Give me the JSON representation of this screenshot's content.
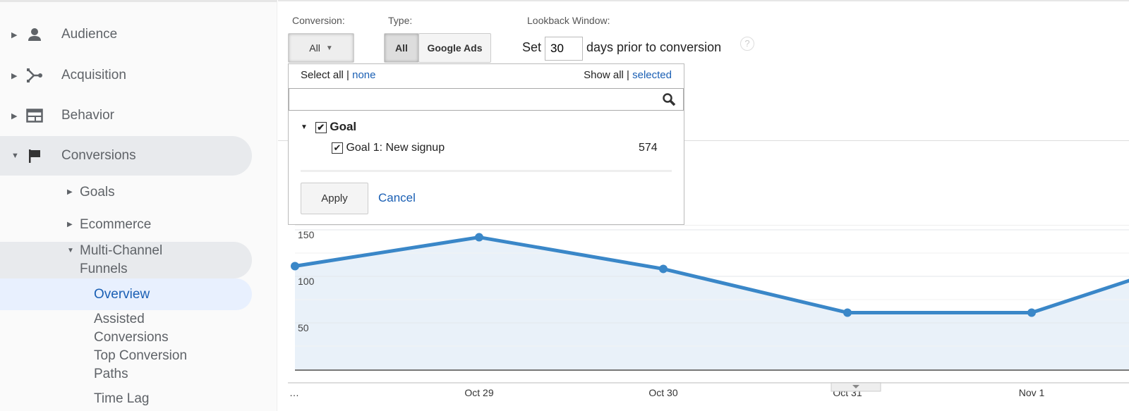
{
  "sidebar": {
    "items": [
      {
        "label": "Audience",
        "icon": "person-icon"
      },
      {
        "label": "Acquisition",
        "icon": "acquisition-icon"
      },
      {
        "label": "Behavior",
        "icon": "behavior-icon"
      },
      {
        "label": "Conversions",
        "icon": "flag-icon"
      }
    ],
    "sub": {
      "goals": "Goals",
      "ecommerce": "Ecommerce",
      "mcf_line1": "Multi-Channel",
      "mcf_line2": "Funnels",
      "overview": "Overview",
      "assisted1": "Assisted",
      "assisted2": "Conversions",
      "top1": "Top Conversion",
      "top2": "Paths",
      "timelag": "Time Lag"
    }
  },
  "filters": {
    "conversion_label": "Conversion:",
    "conversion_value": "All",
    "type_label": "Type:",
    "type_all": "All",
    "type_google_ads": "Google Ads",
    "lookback_label": "Lookback Window:",
    "set": "Set",
    "days_value": "30",
    "days_suffix": "days prior to conversion",
    "help": "?"
  },
  "dropdown": {
    "select_all": "Select all",
    "sep": "|",
    "none": "none",
    "show_all": "Show all",
    "selected": "selected",
    "search_value": "",
    "group": "Goal",
    "goal_item": "Goal 1: New signup",
    "goal_count": "574",
    "apply": "Apply",
    "cancel": "Cancel"
  },
  "colors": {
    "line": "#3a87c8",
    "fill": "#e9f1f9",
    "link": "#1a5fb4"
  },
  "chart_data": {
    "type": "area",
    "x": [
      "…",
      "Oct 29",
      "Oct 30",
      "Oct 31",
      "Nov 1",
      ""
    ],
    "values": [
      111,
      142,
      108,
      61,
      61,
      126
    ],
    "yticks": [
      50,
      100,
      150
    ],
    "ylim": [
      0,
      150
    ],
    "grid": true
  }
}
